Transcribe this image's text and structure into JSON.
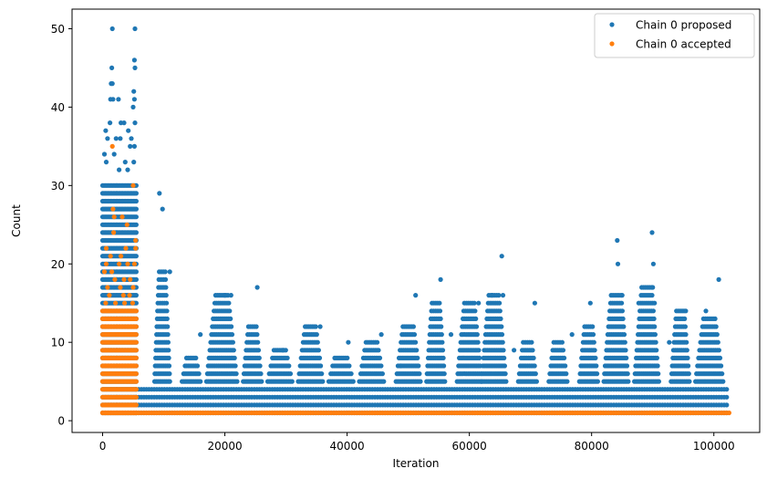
{
  "chart_data": {
    "type": "scatter",
    "xlabel": "Iteration",
    "ylabel": "Count",
    "xlim": [
      -5000,
      107500
    ],
    "ylim": [
      -1.5,
      52.5
    ],
    "xticks": [
      0,
      20000,
      40000,
      60000,
      80000,
      100000
    ],
    "xtick_labels": [
      "0",
      "20000",
      "40000",
      "60000",
      "80000",
      "100000"
    ],
    "yticks": [
      0,
      10,
      20,
      30,
      40,
      50
    ],
    "ytick_labels": [
      "0",
      "10",
      "20",
      "30",
      "40",
      "50"
    ],
    "legend_position": "upper-right",
    "series": [
      {
        "name": "Chain 0 proposed",
        "color": "#1f77b4",
        "marker": "circle",
        "dense_bands": [
          {
            "x": [
              0,
              5500
            ],
            "y": [
              1,
              30
            ]
          },
          {
            "x": [
              5500,
              102500
            ],
            "y": [
              1,
              4
            ]
          }
        ],
        "clusters": [
          {
            "x": [
              8500,
              11000
            ],
            "y_max": 19
          },
          {
            "x": [
              13000,
              16000
            ],
            "y_max": 8
          },
          {
            "x": [
              17000,
              22000
            ],
            "y_max": 16
          },
          {
            "x": [
              23000,
              26000
            ],
            "y_max": 12
          },
          {
            "x": [
              27000,
              31000
            ],
            "y_max": 9
          },
          {
            "x": [
              32000,
              36000
            ],
            "y_max": 12
          },
          {
            "x": [
              37000,
              41000
            ],
            "y_max": 8
          },
          {
            "x": [
              42000,
              46000
            ],
            "y_max": 10
          },
          {
            "x": [
              48000,
              52000
            ],
            "y_max": 12
          },
          {
            "x": [
              53000,
              56000
            ],
            "y_max": 15
          },
          {
            "x": [
              58000,
              62000
            ],
            "y_max": 15
          },
          {
            "x": [
              62000,
              66000
            ],
            "y_max": 16
          },
          {
            "x": [
              68000,
              71000
            ],
            "y_max": 10
          },
          {
            "x": [
              73000,
              76000
            ],
            "y_max": 10
          },
          {
            "x": [
              78000,
              81000
            ],
            "y_max": 12
          },
          {
            "x": [
              82000,
              86000
            ],
            "y_max": 16
          },
          {
            "x": [
              87000,
              91000
            ],
            "y_max": 17
          },
          {
            "x": [
              93000,
              96000
            ],
            "y_max": 14
          },
          {
            "x": [
              97000,
              101500
            ],
            "y_max": 13
          }
        ],
        "points": [
          [
            1600,
            50
          ],
          [
            5300,
            50
          ],
          [
            1500,
            45
          ],
          [
            5200,
            46
          ],
          [
            5300,
            45
          ],
          [
            1400,
            43
          ],
          [
            1600,
            43
          ],
          [
            1300,
            41
          ],
          [
            1700,
            41
          ],
          [
            2600,
            41
          ],
          [
            5100,
            42
          ],
          [
            5200,
            41
          ],
          [
            5000,
            40
          ],
          [
            500,
            37
          ],
          [
            1200,
            38
          ],
          [
            3000,
            38
          ],
          [
            3500,
            38
          ],
          [
            4200,
            37
          ],
          [
            5300,
            38
          ],
          [
            800,
            36
          ],
          [
            2200,
            36
          ],
          [
            2900,
            36
          ],
          [
            4700,
            36
          ],
          [
            4500,
            35
          ],
          [
            5200,
            35
          ],
          [
            300,
            34
          ],
          [
            600,
            33
          ],
          [
            1900,
            34
          ],
          [
            3700,
            33
          ],
          [
            5100,
            33
          ],
          [
            4100,
            32
          ],
          [
            2700,
            32
          ],
          [
            9300,
            29
          ],
          [
            9800,
            27
          ],
          [
            65300,
            21
          ],
          [
            84200,
            23
          ],
          [
            84300,
            20
          ],
          [
            89900,
            24
          ],
          [
            90100,
            20
          ],
          [
            25300,
            17
          ],
          [
            55300,
            18
          ],
          [
            100800,
            18
          ],
          [
            51200,
            16
          ],
          [
            85000,
            16
          ],
          [
            90000,
            17
          ],
          [
            11000,
            19
          ],
          [
            20000,
            16
          ],
          [
            21000,
            16
          ],
          [
            61500,
            15
          ],
          [
            63700,
            16
          ],
          [
            65500,
            16
          ],
          [
            70700,
            15
          ],
          [
            79800,
            15
          ],
          [
            87700,
            15
          ],
          [
            90300,
            15
          ],
          [
            95400,
            14
          ],
          [
            98700,
            14
          ],
          [
            16000,
            11
          ],
          [
            29500,
            9
          ],
          [
            35600,
            12
          ],
          [
            40200,
            10
          ],
          [
            45600,
            11
          ],
          [
            48800,
            7
          ],
          [
            57000,
            11
          ],
          [
            67300,
            9
          ],
          [
            76800,
            11
          ],
          [
            92700,
            10
          ]
        ]
      },
      {
        "name": "Chain 0 accepted",
        "color": "#ff7f0e",
        "marker": "circle",
        "dense_bands": [
          {
            "x": [
              0,
              5500
            ],
            "y": [
              1,
              14
            ]
          },
          {
            "x": [
              0,
              102500
            ],
            "y": [
              1,
              1
            ]
          }
        ],
        "points": [
          [
            1600,
            35
          ],
          [
            5000,
            30
          ],
          [
            3200,
            26
          ],
          [
            1700,
            27
          ],
          [
            1900,
            26
          ],
          [
            5400,
            23
          ],
          [
            4000,
            25
          ],
          [
            1800,
            24
          ],
          [
            600,
            22
          ],
          [
            3800,
            22
          ],
          [
            5400,
            22
          ],
          [
            1300,
            21
          ],
          [
            3000,
            21
          ],
          [
            600,
            20
          ],
          [
            2700,
            20
          ],
          [
            4100,
            20
          ],
          [
            5200,
            20
          ],
          [
            300,
            19
          ],
          [
            1500,
            19
          ],
          [
            2000,
            18
          ],
          [
            3500,
            18
          ],
          [
            4500,
            18
          ],
          [
            800,
            17
          ],
          [
            2900,
            17
          ],
          [
            5000,
            17
          ],
          [
            1100,
            16
          ],
          [
            3400,
            16
          ],
          [
            4400,
            16
          ],
          [
            500,
            15
          ],
          [
            2100,
            15
          ],
          [
            3600,
            15
          ],
          [
            4900,
            15
          ]
        ]
      }
    ]
  }
}
